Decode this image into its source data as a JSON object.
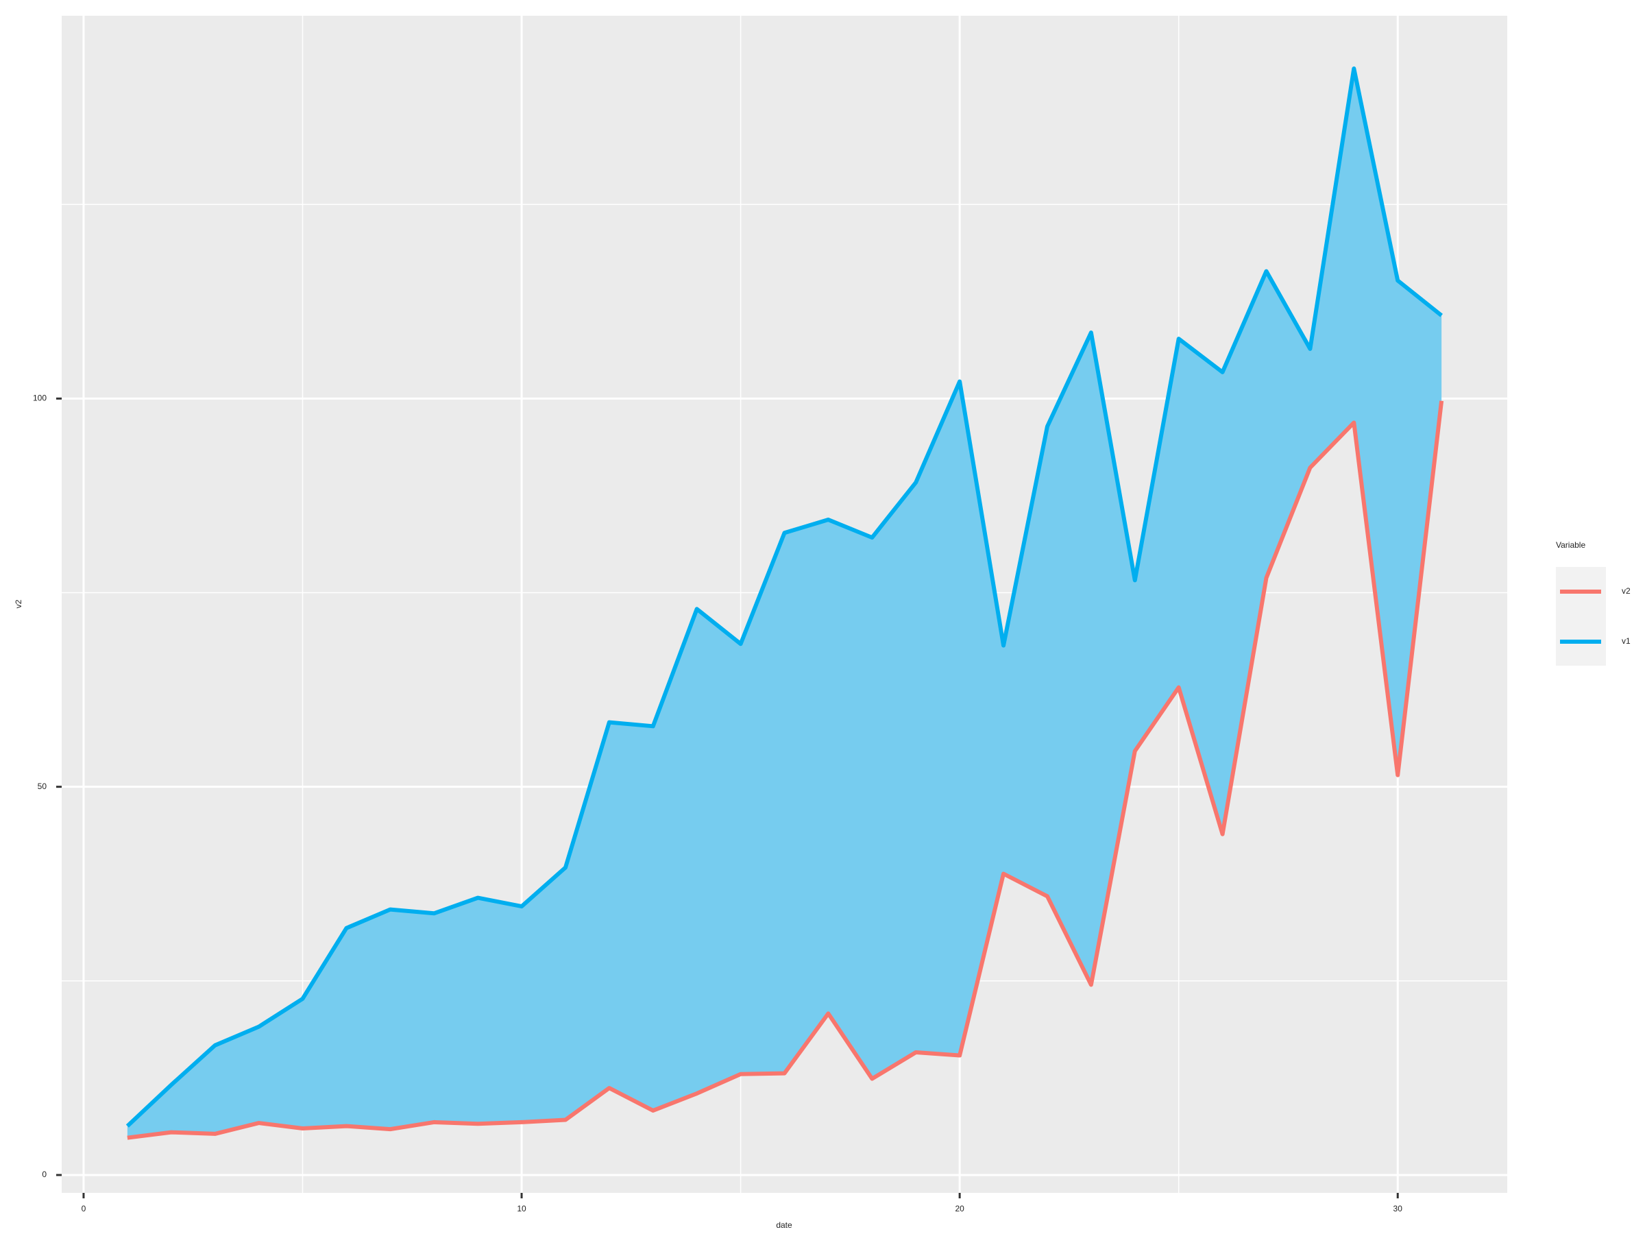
{
  "chart_data": {
    "type": "ribbon-line",
    "x_label": "date",
    "y_label": "v2",
    "x": [
      1,
      2,
      3,
      4,
      5,
      6,
      7,
      8,
      9,
      10,
      11,
      12,
      13,
      14,
      15,
      16,
      17,
      18,
      19,
      20,
      21,
      22,
      23,
      24,
      25,
      26,
      27,
      28,
      29,
      30,
      31
    ],
    "series": [
      {
        "name": "v2",
        "color": "#F8766D",
        "values": [
          4.8,
          5.5,
          5.3,
          6.7,
          6.0,
          6.3,
          5.9,
          6.8,
          6.6,
          6.8,
          7.1,
          11.2,
          8.3,
          10.5,
          13.0,
          13.1,
          20.8,
          12.4,
          15.8,
          15.4,
          38.8,
          35.9,
          24.5,
          54.6,
          62.8,
          43.9,
          76.9,
          91.1,
          96.9,
          51.5,
          99.7
        ]
      },
      {
        "name": "v1",
        "color": "#00AEEF",
        "values": [
          6.3,
          11.6,
          16.7,
          19.1,
          22.7,
          31.8,
          34.2,
          33.7,
          35.7,
          34.6,
          39.6,
          58.3,
          57.8,
          72.9,
          68.4,
          82.7,
          84.4,
          82.1,
          89.2,
          102.2,
          68.2,
          96.4,
          108.5,
          76.6,
          107.7,
          103.4,
          116.4,
          106.4,
          142.5,
          115.2,
          110.7
        ]
      }
    ],
    "fill_color": "#76CCEF",
    "xlim": [
      -0.5,
      32.5
    ],
    "xticks": [
      0,
      10,
      20,
      30
    ],
    "x_minor_grid": [
      5,
      15,
      25
    ],
    "ylim": [
      -2.3,
      149.3
    ],
    "yticks": [
      0,
      50,
      100
    ],
    "y_minor_grid": [
      25,
      75,
      125
    ],
    "grid": true,
    "legend_title": "Variable",
    "legend_position": "right"
  }
}
